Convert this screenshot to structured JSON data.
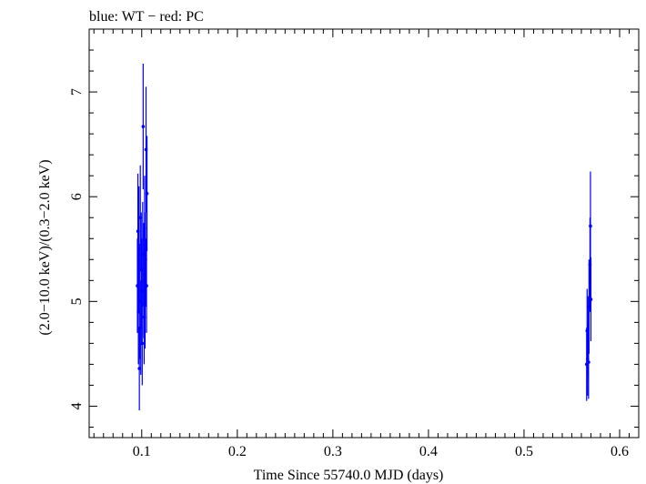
{
  "chart_data": {
    "type": "scatter",
    "title": "blue: WT − red: PC",
    "xlabel": "Time Since 55740.0 MJD (days)",
    "ylabel": "(2.0−10.0 keV)/(0.3−2.0 keV)",
    "xlim": [
      0.045,
      0.62
    ],
    "ylim": [
      3.7,
      7.6
    ],
    "xticks": [
      0.1,
      0.2,
      0.3,
      0.4,
      0.5,
      0.6
    ],
    "xtick_labels": [
      "0.1",
      "0.2",
      "0.3",
      "0.4",
      "0.5",
      "0.6"
    ],
    "yticks": [
      4,
      5,
      6,
      7
    ],
    "ytick_labels": [
      "4",
      "5",
      "6",
      "7"
    ],
    "grid": false,
    "series": [
      {
        "name": "WT",
        "color": "#0000ff",
        "points": [
          {
            "x": 0.0955,
            "y": 5.15,
            "err": 0.45
          },
          {
            "x": 0.096,
            "y": 5.67,
            "err": 0.55
          },
          {
            "x": 0.0965,
            "y": 4.9,
            "err": 0.5
          },
          {
            "x": 0.097,
            "y": 5.5,
            "err": 0.6
          },
          {
            "x": 0.0975,
            "y": 4.36,
            "err": 0.4
          },
          {
            "x": 0.098,
            "y": 5.0,
            "err": 0.55
          },
          {
            "x": 0.0985,
            "y": 5.8,
            "err": 0.5
          },
          {
            "x": 0.099,
            "y": 4.75,
            "err": 0.45
          },
          {
            "x": 0.0995,
            "y": 5.3,
            "err": 0.55
          },
          {
            "x": 0.1,
            "y": 5.1,
            "err": 0.5
          },
          {
            "x": 0.1005,
            "y": 4.6,
            "err": 0.4
          },
          {
            "x": 0.101,
            "y": 5.45,
            "err": 0.5
          },
          {
            "x": 0.1015,
            "y": 6.67,
            "err": 0.6
          },
          {
            "x": 0.102,
            "y": 5.2,
            "err": 0.55
          },
          {
            "x": 0.1025,
            "y": 4.85,
            "err": 0.45
          },
          {
            "x": 0.103,
            "y": 5.7,
            "err": 0.5
          },
          {
            "x": 0.1035,
            "y": 5.05,
            "err": 0.5
          },
          {
            "x": 0.104,
            "y": 5.4,
            "err": 0.45
          },
          {
            "x": 0.1045,
            "y": 6.45,
            "err": 0.6
          },
          {
            "x": 0.105,
            "y": 5.15,
            "err": 0.45
          },
          {
            "x": 0.1055,
            "y": 6.03,
            "err": 0.55
          },
          {
            "x": 0.5655,
            "y": 4.4,
            "err": 0.35
          },
          {
            "x": 0.566,
            "y": 4.72,
            "err": 0.4
          },
          {
            "x": 0.5665,
            "y": 4.45,
            "err": 0.35
          },
          {
            "x": 0.567,
            "y": 4.65,
            "err": 0.4
          },
          {
            "x": 0.5675,
            "y": 4.42,
            "err": 0.35
          },
          {
            "x": 0.568,
            "y": 4.95,
            "err": 0.45
          },
          {
            "x": 0.569,
            "y": 5.35,
            "err": 0.45
          },
          {
            "x": 0.5695,
            "y": 5.72,
            "err": 0.52
          },
          {
            "x": 0.57,
            "y": 5.02,
            "err": 0.4
          }
        ]
      }
    ]
  }
}
